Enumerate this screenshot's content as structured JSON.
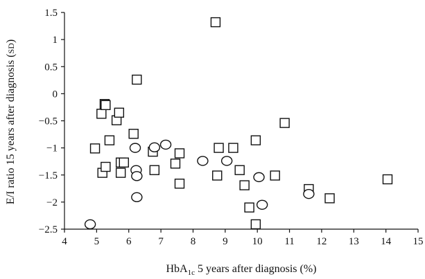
{
  "chart_data": {
    "type": "scatter",
    "xlabel_parts": {
      "pre": "HbA",
      "sub": "1c",
      "post": " 5 years after diagnosis (%)"
    },
    "ylabel_parts": {
      "pre": "E/I ratio 15 years after diagnosis (",
      "sc": "SD",
      "post": ")"
    },
    "xlim": [
      4,
      15
    ],
    "ylim": [
      -2.5,
      1.5
    ],
    "x_ticks": [
      4,
      5,
      6,
      7,
      8,
      9,
      10,
      11,
      12,
      13,
      14,
      15
    ],
    "x_tick_labels": [
      "4",
      "5",
      "6",
      "7",
      "8",
      "9",
      "10",
      "11",
      "12",
      "13",
      "14",
      "15"
    ],
    "y_ticks": [
      1.5,
      1,
      0.5,
      0,
      -0.5,
      -1,
      -1.5,
      -2,
      -2.5
    ],
    "y_tick_labels": [
      "1.5",
      "1",
      "0.5",
      "0",
      "−0.5",
      "−1",
      "−1.5",
      "−2",
      "−2.5"
    ],
    "grid": false,
    "legend": "none",
    "series": [
      {
        "marker": "square",
        "points": [
          [
            4.95,
            -1.01
          ],
          [
            5.15,
            -0.37
          ],
          [
            5.25,
            -0.19
          ],
          [
            5.28,
            -0.21
          ],
          [
            5.18,
            -1.46
          ],
          [
            5.28,
            -1.35
          ],
          [
            5.4,
            -0.86
          ],
          [
            5.62,
            -0.49
          ],
          [
            5.7,
            -0.35
          ],
          [
            5.75,
            -1.27
          ],
          [
            5.75,
            -1.46
          ],
          [
            5.85,
            -1.27
          ],
          [
            6.15,
            -0.74
          ],
          [
            6.25,
            0.26
          ],
          [
            6.75,
            -1.07
          ],
          [
            6.8,
            -1.41
          ],
          [
            7.45,
            -1.29
          ],
          [
            7.58,
            -1.1
          ],
          [
            7.58,
            -1.66
          ],
          [
            8.7,
            1.32
          ],
          [
            8.75,
            -1.51
          ],
          [
            8.8,
            -1.0
          ],
          [
            9.25,
            -1.0
          ],
          [
            9.45,
            -1.41
          ],
          [
            9.6,
            -1.69
          ],
          [
            9.75,
            -2.1
          ],
          [
            9.95,
            -0.86
          ],
          [
            9.95,
            -2.41
          ],
          [
            10.55,
            -1.51
          ],
          [
            10.85,
            -0.54
          ],
          [
            11.6,
            -1.76
          ],
          [
            12.25,
            -1.93
          ],
          [
            14.05,
            -1.58
          ]
        ]
      },
      {
        "marker": "circle",
        "points": [
          [
            4.8,
            -2.41
          ],
          [
            6.2,
            -1.0
          ],
          [
            6.23,
            -1.41
          ],
          [
            6.25,
            -1.52
          ],
          [
            6.25,
            -1.91
          ],
          [
            6.8,
            -0.99
          ],
          [
            7.15,
            -0.94
          ],
          [
            8.3,
            -1.24
          ],
          [
            9.05,
            -1.24
          ],
          [
            10.05,
            -1.54
          ],
          [
            10.15,
            -2.05
          ],
          [
            11.6,
            -1.85
          ]
        ]
      }
    ]
  }
}
